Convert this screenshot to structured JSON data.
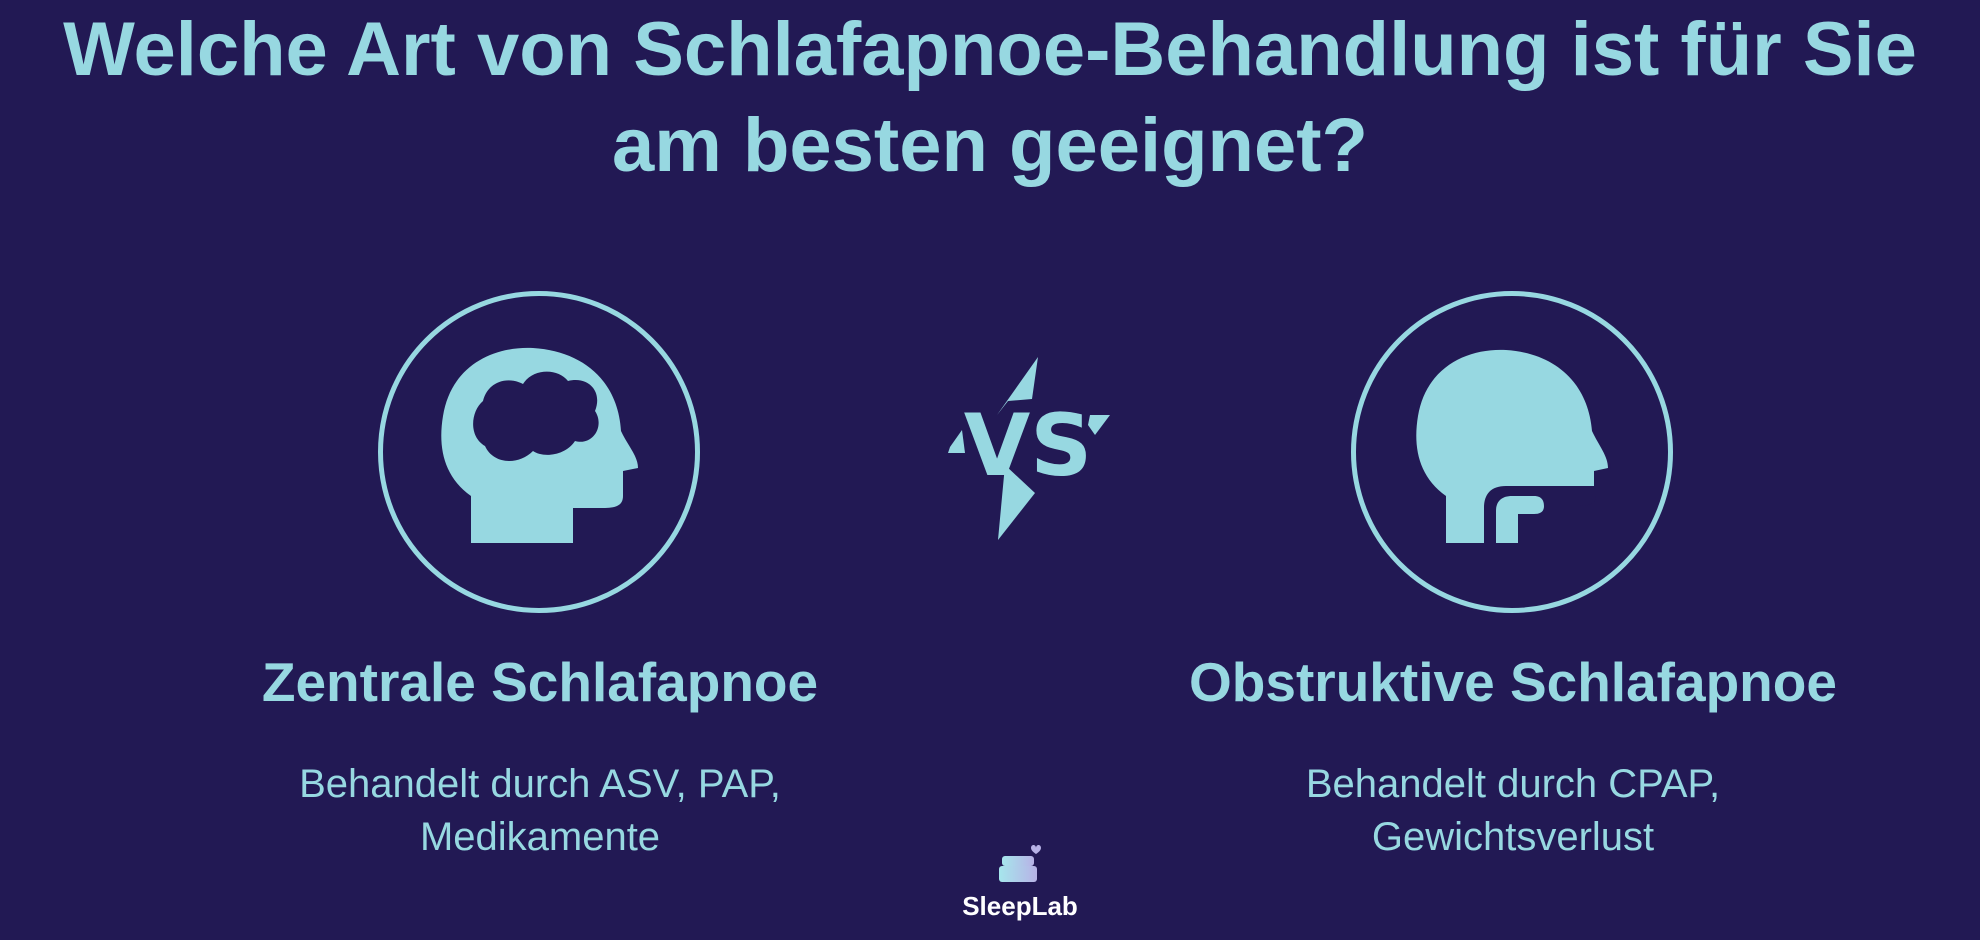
{
  "title": {
    "line1": "Welche Art von Schlafapnoe-Behandlung ist für Sie",
    "line2": "am besten geeignet?"
  },
  "left": {
    "icon": "brain-head-icon",
    "heading": "Zentrale Schlafapnoe",
    "sub_line1": "Behandelt durch ASV, PAP,",
    "sub_line2": "Medikamente"
  },
  "vs": {
    "label": "VS"
  },
  "right": {
    "icon": "throat-head-icon",
    "heading": "Obstruktive Schlafapnoe",
    "sub_line1": "Behandelt durch CPAP,",
    "sub_line2": "Gewichtsverlust"
  },
  "logo": {
    "text": "SleepLab"
  },
  "colors": {
    "background": "#221954",
    "accent": "#97d8e1"
  }
}
